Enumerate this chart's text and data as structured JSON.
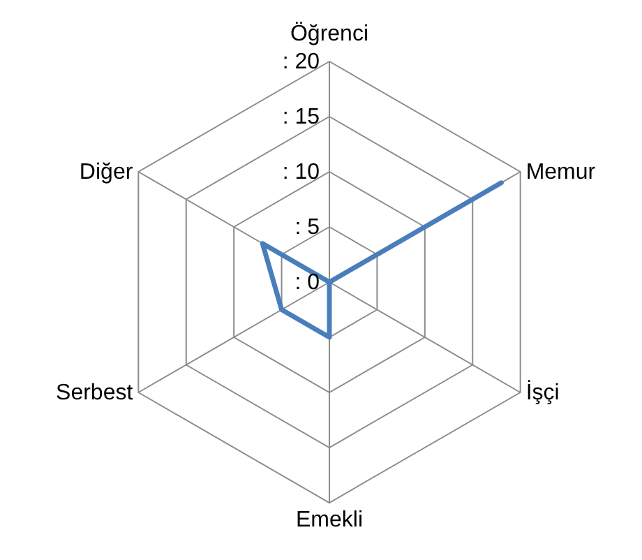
{
  "chart_data": {
    "type": "radar",
    "categories": [
      "Öğrenci",
      "Memur",
      "İşçi",
      "Emekli",
      "Serbest",
      "Diğer"
    ],
    "series": [
      {
        "color": "#4a7ebb",
        "values": [
          0,
          18,
          0,
          5,
          5,
          7
        ]
      }
    ],
    "ylim": [
      0,
      20
    ],
    "yticks": [
      {
        "value": 0,
        "label": ": 0"
      },
      {
        "value": 5,
        "label": ": 5"
      },
      {
        "value": 10,
        "label": ": 10"
      },
      {
        "value": 15,
        "label": ": 15"
      },
      {
        "value": 20,
        "label": ": 20"
      }
    ],
    "grid": true,
    "marker": "none",
    "line_style": "solid"
  }
}
